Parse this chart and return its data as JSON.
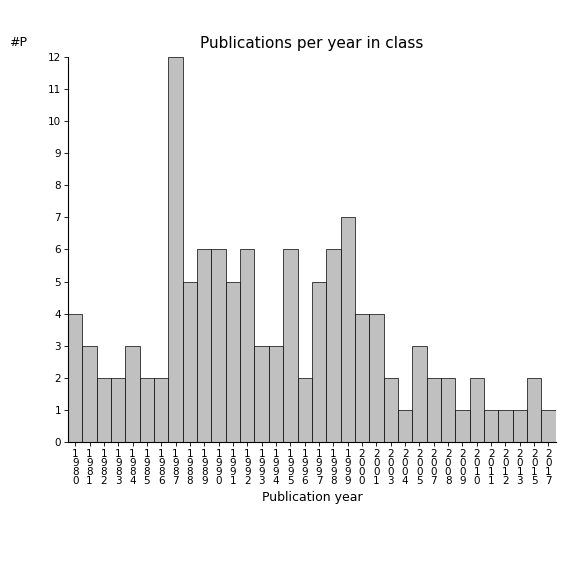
{
  "years": [
    1980,
    1981,
    1982,
    1983,
    1984,
    1985,
    1986,
    1987,
    1988,
    1989,
    1990,
    1991,
    1992,
    1993,
    1994,
    1995,
    1996,
    1997,
    1998,
    1999,
    2000,
    2001,
    2003,
    2004,
    2005,
    2007,
    2008,
    2009,
    2010,
    2011,
    2012,
    2013,
    2015,
    2017
  ],
  "values": [
    4,
    3,
    2,
    2,
    3,
    2,
    2,
    12,
    5,
    6,
    6,
    5,
    6,
    3,
    3,
    6,
    2,
    5,
    6,
    7,
    4,
    4,
    2,
    1,
    3,
    2,
    2,
    1,
    2,
    1,
    1,
    1,
    2,
    1
  ],
  "bar_color": "#c0c0c0",
  "bar_edgecolor": "#000000",
  "title": "Publications per year in class",
  "xlabel": "Publication year",
  "ylabel": "#P",
  "ylim": [
    0,
    12
  ],
  "yticks": [
    0,
    1,
    2,
    3,
    4,
    5,
    6,
    7,
    8,
    9,
    10,
    11,
    12
  ],
  "background_color": "#ffffff",
  "title_fontsize": 11,
  "label_fontsize": 9,
  "tick_fontsize": 7.5
}
